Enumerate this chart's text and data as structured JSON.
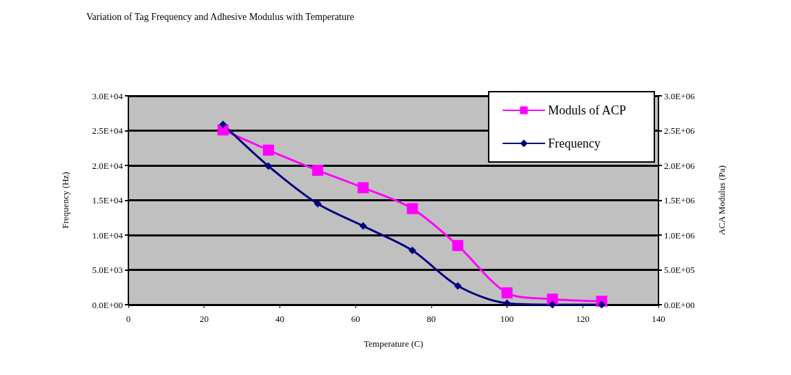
{
  "chart_data": {
    "type": "line",
    "title": "Variation of Tag Frequency and Adhesive Modulus with Temperature",
    "xlabel": "Temperature (C)",
    "ylabel": "Frequency (Hz)",
    "y2label": "ACA Modulus (Pa)",
    "x": [
      25,
      37,
      50,
      62,
      75,
      87,
      100,
      112,
      125
    ],
    "series": [
      {
        "name": "Moduls of ACP",
        "color": "#ff00ff",
        "axis": "y2",
        "marker": "square",
        "values": [
          2510000,
          2220000,
          1930000,
          1680000,
          1380000,
          850000,
          170000,
          80000,
          50000
        ]
      },
      {
        "name": "Frequency",
        "color": "#000080",
        "marker": "diamond",
        "values": [
          25900,
          19900,
          14500,
          11300,
          7800,
          2700,
          200,
          0,
          0
        ]
      }
    ],
    "xlim": [
      0,
      140
    ],
    "xticks": [
      0,
      20,
      40,
      60,
      80,
      100,
      120,
      140
    ],
    "ylim": [
      0,
      30000
    ],
    "yticks": [
      {
        "value": 0,
        "label": "0.0E+00"
      },
      {
        "value": 5000,
        "label": "5.0E+03"
      },
      {
        "value": 10000,
        "label": "1.0E+04"
      },
      {
        "value": 15000,
        "label": "1.5E+04"
      },
      {
        "value": 20000,
        "label": "2.0E+04"
      },
      {
        "value": 25000,
        "label": "2.5E+04"
      },
      {
        "value": 30000,
        "label": "3.0E+04"
      }
    ],
    "y2lim": [
      0,
      3000000
    ],
    "y2ticks": [
      {
        "value": 0,
        "label": "0.0E+00"
      },
      {
        "value": 500000,
        "label": "5.0E+05"
      },
      {
        "value": 1000000,
        "label": "1.0E+06"
      },
      {
        "value": 1500000,
        "label": "1.5E+06"
      },
      {
        "value": 2000000,
        "label": "2.0E+06"
      },
      {
        "value": 2500000,
        "label": "2.5E+06"
      },
      {
        "value": 3000000,
        "label": "3.0E+06"
      }
    ],
    "grid": "y",
    "legend": "top right",
    "line_style": "solid"
  }
}
